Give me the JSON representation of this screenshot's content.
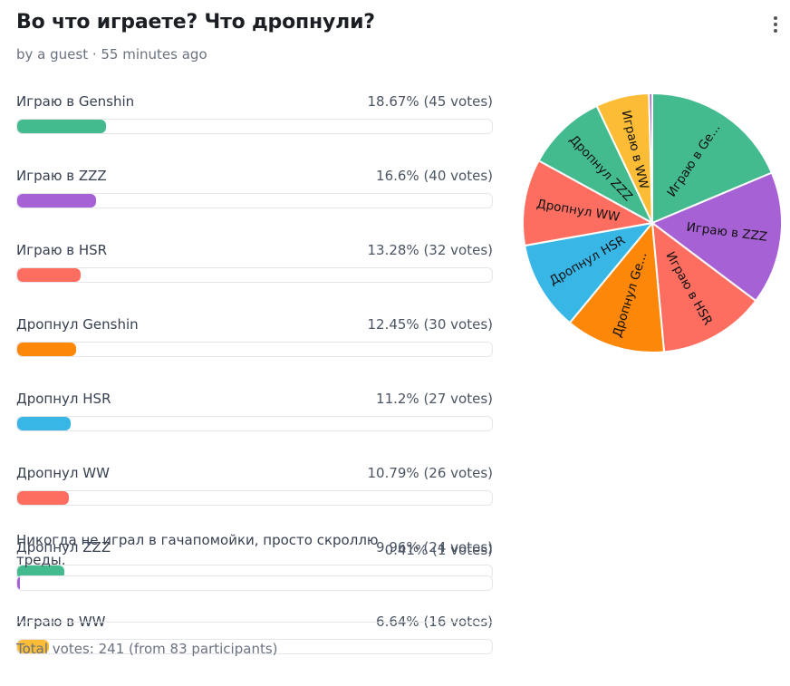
{
  "poll": {
    "title": "Во что играете? Что дропнули?",
    "byline": "by a guest · 55 minutes ago",
    "total": "Total votes: 241 (from 83 participants)"
  },
  "chart_data": {
    "type": "pie",
    "categories": [
      "Играю в Genshin",
      "Играю в ZZZ",
      "Играю в HSR",
      "Дропнул Genshin",
      "Дропнул HSR",
      "Дропнул WW",
      "Дропнул ZZZ",
      "Играю в WW",
      "Никогда не играл в гачапомойки, просто скроллю треды."
    ],
    "values": [
      45,
      40,
      32,
      30,
      27,
      26,
      24,
      16,
      1
    ],
    "percent_labels": [
      "18.67% (45 votes)",
      "16.6% (40 votes)",
      "13.28% (32 votes)",
      "12.45% (30 votes)",
      "11.2% (27 votes)",
      "10.79% (26 votes)",
      "9.96% (24 votes)",
      "6.64% (16 votes)",
      "0.41% (1 votes)"
    ],
    "slice_labels": [
      "Играю в Ge...",
      "Играю в ZZZ",
      "Играю в HSR",
      "Дропнул Ge...",
      "Дропнул HSR",
      "Дропнул WW",
      "Дропнул ZZZ",
      "Играю в WW",
      ""
    ],
    "colors": [
      "#43bb8f",
      "#a662d4",
      "#fd6e61",
      "#fd8708",
      "#38b7e6",
      "#fd6e61",
      "#43bb8f",
      "#fcbc35",
      "#a662d4"
    ]
  }
}
